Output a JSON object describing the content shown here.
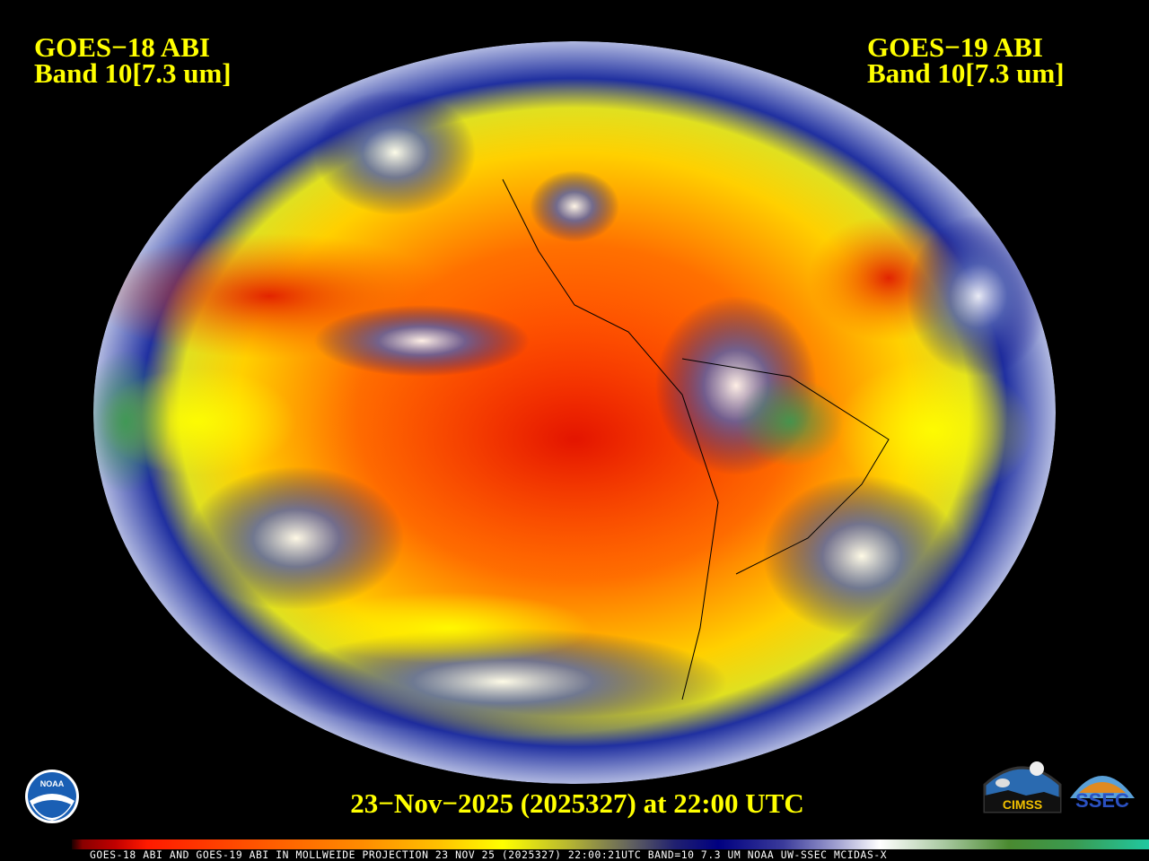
{
  "header": {
    "left_line1": "GOES−18 ABI",
    "left_line2": "Band 10[7.3 um]",
    "right_line1": "GOES−19 ABI",
    "right_line2": "Band 10[7.3 um]"
  },
  "timestamp": "23−Nov−2025 (2025327) at 22:00 UTC",
  "footer_strip": "GOES-18 ABI AND GOES-19 ABI IN MOLLWEIDE PROJECTION 23 NOV 25 (2025327) 22:00:21UTC BAND=10 7.3 UM NOAA UW-SSEC MCIDAS-X",
  "logos": {
    "noaa": "NOAA",
    "cimss": "CIMSS",
    "ssec": "SSEC"
  },
  "map": {
    "projection": "Mollweide",
    "product": "water vapor imagery",
    "colors": {
      "dry": "#ff2000",
      "mid": "#ffff00",
      "moist": "#000080",
      "cloud": "#ffffff",
      "cold": "#3a9a50"
    }
  }
}
